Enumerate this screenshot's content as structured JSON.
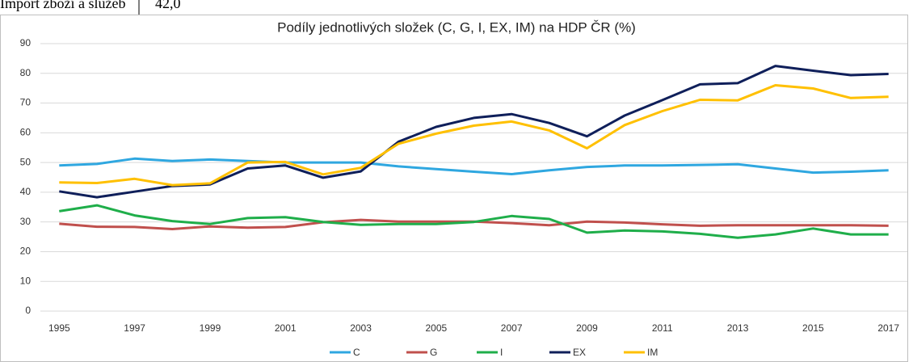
{
  "table_fragment": {
    "label": "Import zboží a služeb",
    "value": "42,0"
  },
  "chart_data": {
    "type": "line",
    "title": "Podíly jednotlivých složek (C, G, I, EX, IM) na HDP ČR (%)",
    "categories": [
      "1995",
      null,
      "1997",
      null,
      "1999",
      null,
      "2001",
      null,
      "2003",
      null,
      "2005",
      null,
      "2007",
      null,
      "2009",
      null,
      "2011",
      null,
      "2013",
      null,
      "2015",
      null,
      "2017"
    ],
    "series": [
      {
        "name": "C",
        "color": "#2fa7e0",
        "values": [
          49,
          49.5,
          51.3,
          50.5,
          51,
          50.5,
          50,
          50,
          50,
          48.7,
          47.8,
          46.9,
          46.1,
          47.4,
          48.5,
          49,
          49,
          49.2,
          49.4,
          48,
          46.6,
          46.9,
          47.4
        ]
      },
      {
        "name": "G",
        "color": "#c0504d",
        "values": [
          29.4,
          28.4,
          28.3,
          27.6,
          28.5,
          28.1,
          28.3,
          29.9,
          30.7,
          30.1,
          30.1,
          30.1,
          29.6,
          28.9,
          30.1,
          29.8,
          29.2,
          28.7,
          28.9,
          28.9,
          28.9,
          28.9,
          28.7
        ]
      },
      {
        "name": "I",
        "color": "#1fae4a",
        "values": [
          33.6,
          35.6,
          32.2,
          30.3,
          29.3,
          31.3,
          31.6,
          30,
          29,
          29.3,
          29.3,
          30,
          32,
          31,
          26.4,
          27.1,
          26.8,
          26,
          24.7,
          25.8,
          27.8,
          25.8,
          25.8
        ]
      },
      {
        "name": "EX",
        "color": "#0f1f5a",
        "values": [
          40.3,
          38.3,
          40.2,
          42.1,
          42.6,
          48,
          49,
          44.9,
          47,
          57,
          62,
          65,
          66.3,
          63.3,
          58.8,
          65.8,
          71,
          76.3,
          76.7,
          82.5,
          80.9,
          79.4,
          79.8
        ]
      },
      {
        "name": "IM",
        "color": "#ffc000",
        "values": [
          43.3,
          43.1,
          44.5,
          42.4,
          43,
          50,
          50.2,
          46,
          48.2,
          56.3,
          59.7,
          62.4,
          63.8,
          60.8,
          54.8,
          62.6,
          67.3,
          71.1,
          70.9,
          76,
          74.9,
          71.7,
          72.1
        ]
      }
    ],
    "ylim": [
      0,
      90
    ],
    "yticks": [
      0,
      10,
      20,
      30,
      40,
      50,
      60,
      70,
      80,
      90
    ],
    "grid": true,
    "legend": "bottom"
  }
}
